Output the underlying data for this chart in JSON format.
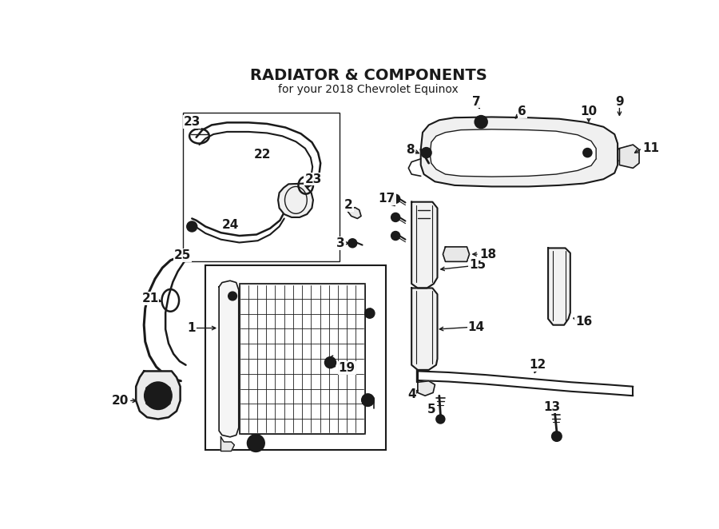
{
  "title": "RADIATOR & COMPONENTS",
  "subtitle": "for your 2018 Chevrolet Equinox",
  "bg_color": "#ffffff",
  "line_color": "#1a1a1a",
  "text_color": "#1a1a1a",
  "fig_width": 9.0,
  "fig_height": 6.62,
  "dpi": 100,
  "label_fontsize": 11
}
